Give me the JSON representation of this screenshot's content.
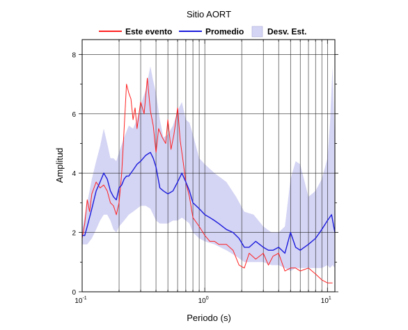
{
  "chart_data": {
    "type": "line",
    "title": "Sitio AORT",
    "xlabel": "Periodo (s)",
    "ylabel": "Amplitud",
    "x_scale": "log",
    "xlim": [
      0.1,
      11.5
    ],
    "ylim": [
      0,
      8.5
    ],
    "x_ticks": [
      {
        "value": 0.1,
        "base": "10",
        "exp": "-1"
      },
      {
        "value": 1,
        "base": "10",
        "exp": "0"
      },
      {
        "value": 10,
        "base": "10",
        "exp": "1"
      }
    ],
    "y_ticks": [
      0,
      2,
      4,
      6,
      8
    ],
    "grid": true,
    "legend_position": "top",
    "colors": {
      "event": "#ff2020",
      "mean": "#1a1adc",
      "band": "#d4d4f4"
    },
    "series": [
      {
        "name": "Este evento",
        "kind": "line",
        "color": "#ff2020",
        "x": [
          0.1,
          0.105,
          0.11,
          0.115,
          0.12,
          0.13,
          0.14,
          0.15,
          0.16,
          0.17,
          0.18,
          0.19,
          0.2,
          0.21,
          0.22,
          0.23,
          0.24,
          0.25,
          0.26,
          0.27,
          0.28,
          0.3,
          0.32,
          0.34,
          0.36,
          0.38,
          0.4,
          0.42,
          0.45,
          0.48,
          0.5,
          0.53,
          0.56,
          0.6,
          0.63,
          0.66,
          0.7,
          0.75,
          0.8,
          0.9,
          1.0,
          1.1,
          1.2,
          1.3,
          1.5,
          1.7,
          1.9,
          2.1,
          2.3,
          2.6,
          3.0,
          3.3,
          3.6,
          4.0,
          4.5,
          5.0,
          5.5,
          6.0,
          7.0,
          8.0,
          9.0,
          10.0,
          11.0
        ],
        "y": [
          1.8,
          2.3,
          3.1,
          2.7,
          3.3,
          3.7,
          3.5,
          3.6,
          3.4,
          3.0,
          2.9,
          2.6,
          3.0,
          4.0,
          5.5,
          7.0,
          6.7,
          6.5,
          5.8,
          6.2,
          5.5,
          6.4,
          6.0,
          7.2,
          6.1,
          5.6,
          4.7,
          5.5,
          5.2,
          5.0,
          5.8,
          4.8,
          5.3,
          6.2,
          5.1,
          4.5,
          3.7,
          3.2,
          2.5,
          2.2,
          1.9,
          1.7,
          1.7,
          1.6,
          1.6,
          1.4,
          0.9,
          0.8,
          1.3,
          1.1,
          1.3,
          0.9,
          1.2,
          1.3,
          0.7,
          0.8,
          0.8,
          0.7,
          0.8,
          0.6,
          0.4,
          0.3,
          0.3
        ]
      },
      {
        "name": "Promedio",
        "kind": "line",
        "color": "#1a1adc",
        "x": [
          0.1,
          0.105,
          0.11,
          0.12,
          0.13,
          0.14,
          0.15,
          0.16,
          0.17,
          0.18,
          0.19,
          0.2,
          0.21,
          0.22,
          0.23,
          0.24,
          0.26,
          0.28,
          0.3,
          0.33,
          0.36,
          0.38,
          0.4,
          0.43,
          0.46,
          0.5,
          0.55,
          0.6,
          0.65,
          0.7,
          0.75,
          0.8,
          0.9,
          1.0,
          1.1,
          1.2,
          1.3,
          1.5,
          1.7,
          1.9,
          2.1,
          2.3,
          2.6,
          3.0,
          3.3,
          3.6,
          4.0,
          4.5,
          5.0,
          5.5,
          6.0,
          7.0,
          8.0,
          9.0,
          10.0,
          10.8,
          11.5
        ],
        "y": [
          1.9,
          1.9,
          2.2,
          2.8,
          3.4,
          3.7,
          4.0,
          3.8,
          3.4,
          3.2,
          3.1,
          3.5,
          3.6,
          3.8,
          3.9,
          3.9,
          4.1,
          4.3,
          4.4,
          4.6,
          4.7,
          4.5,
          4.2,
          3.5,
          3.4,
          3.3,
          3.4,
          3.7,
          4.0,
          3.7,
          3.4,
          3.0,
          2.8,
          2.6,
          2.5,
          2.4,
          2.3,
          2.1,
          2.0,
          1.8,
          1.5,
          1.5,
          1.7,
          1.5,
          1.4,
          1.4,
          1.5,
          1.3,
          2.0,
          1.5,
          1.4,
          1.6,
          1.8,
          2.1,
          2.4,
          2.6,
          2.0
        ]
      },
      {
        "name": "Desv. Est.",
        "kind": "band",
        "color": "#d4d4f4",
        "x": [
          0.1,
          0.11,
          0.12,
          0.13,
          0.14,
          0.15,
          0.16,
          0.17,
          0.18,
          0.19,
          0.2,
          0.22,
          0.24,
          0.26,
          0.28,
          0.3,
          0.33,
          0.36,
          0.38,
          0.4,
          0.43,
          0.46,
          0.5,
          0.55,
          0.6,
          0.65,
          0.7,
          0.75,
          0.8,
          0.9,
          1.0,
          1.2,
          1.5,
          1.8,
          2.1,
          2.5,
          3.0,
          3.5,
          4.0,
          4.5,
          5.0,
          5.5,
          6.0,
          7.0,
          8.0,
          9.0,
          10.0,
          10.5,
          11.0,
          11.5
        ],
        "upper": [
          2.1,
          3.0,
          3.8,
          4.4,
          4.9,
          5.5,
          5.0,
          4.5,
          4.5,
          4.4,
          4.7,
          5.2,
          5.6,
          5.5,
          5.8,
          6.3,
          6.8,
          7.6,
          7.1,
          6.7,
          5.8,
          5.2,
          5.3,
          5.6,
          6.1,
          6.4,
          5.8,
          5.7,
          5.3,
          4.5,
          4.3,
          4.0,
          3.7,
          3.2,
          2.7,
          2.6,
          2.2,
          2.0,
          2.0,
          2.2,
          3.8,
          4.4,
          4.3,
          3.2,
          3.4,
          3.8,
          4.5,
          5.7,
          7.6,
          5.0
        ],
        "lower": [
          1.6,
          1.6,
          1.8,
          2.1,
          2.4,
          2.6,
          2.6,
          2.4,
          2.1,
          2.0,
          2.2,
          2.4,
          2.6,
          2.7,
          2.8,
          2.9,
          2.9,
          2.8,
          2.6,
          2.4,
          2.3,
          2.3,
          2.3,
          2.4,
          2.4,
          2.5,
          2.4,
          2.3,
          2.0,
          1.8,
          1.7,
          1.6,
          1.4,
          1.2,
          1.0,
          1.0,
          1.0,
          0.9,
          0.9,
          0.8,
          0.7,
          0.8,
          0.8,
          0.8,
          0.8,
          0.8,
          0.9,
          0.8,
          0.9,
          0.8
        ]
      }
    ]
  }
}
